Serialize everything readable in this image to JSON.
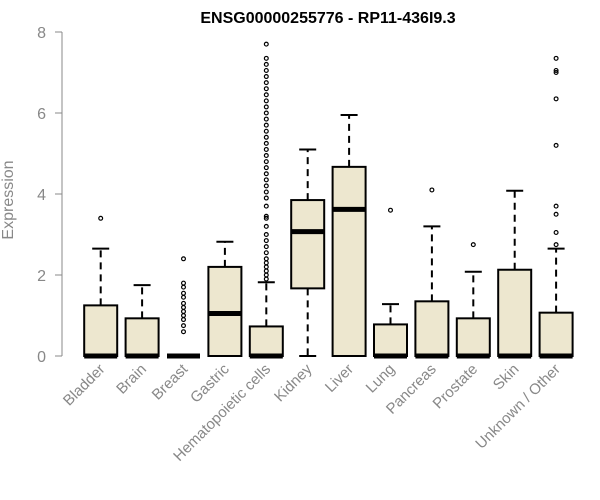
{
  "chart_data": {
    "type": "boxplot",
    "title": "ENSG00000255776 - RP11-436I9.3",
    "xlabel": "",
    "ylabel": "Expression",
    "ylim": [
      0,
      8
    ],
    "yticks": [
      0,
      2,
      4,
      6,
      8
    ],
    "colors": {
      "box_fill": "#ede7cf",
      "stroke": "#000000",
      "axis_text": "#888888",
      "axis_line": "#888888"
    },
    "categories": [
      "Bladder",
      "Brain",
      "Breast",
      "Gastric",
      "Hematopoietic cells",
      "Kidney",
      "Liver",
      "Lung",
      "Pancreas",
      "Prostate",
      "Skin",
      "Unknown / Other"
    ],
    "boxes": [
      {
        "q1": 0,
        "median": 0,
        "q3": 1.25,
        "wlow": 0,
        "whigh": 2.65,
        "outliers": [
          3.4
        ]
      },
      {
        "q1": 0,
        "median": 0,
        "q3": 0.93,
        "wlow": 0,
        "whigh": 1.75,
        "outliers": []
      },
      {
        "q1": 0,
        "median": 0,
        "q3": 0,
        "wlow": 0,
        "whigh": 0,
        "outliers": [
          0.6,
          0.75,
          0.9,
          1.0,
          1.1,
          1.2,
          1.3,
          1.45,
          1.55,
          1.7,
          1.8,
          2.4
        ]
      },
      {
        "q1": 0,
        "median": 1.05,
        "q3": 2.2,
        "wlow": 0,
        "whigh": 2.82,
        "outliers": []
      },
      {
        "q1": 0,
        "median": 0,
        "q3": 0.73,
        "wlow": 0,
        "whigh": 1.82,
        "outliers": [
          1.9,
          2.0,
          2.1,
          2.2,
          2.3,
          2.4,
          2.55,
          2.7,
          2.85,
          3.0,
          3.2,
          3.4,
          3.45,
          3.7,
          3.9,
          4.05,
          4.2,
          4.35,
          4.5,
          4.65,
          4.8,
          4.95,
          5.1,
          5.25,
          5.4,
          5.55,
          5.7,
          5.85,
          6.0,
          6.15,
          6.3,
          6.45,
          6.6,
          6.75,
          6.9,
          7.05,
          7.2,
          7.35,
          7.7
        ]
      },
      {
        "q1": 1.67,
        "median": 3.07,
        "q3": 3.85,
        "wlow": 0,
        "whigh": 5.1,
        "outliers": []
      },
      {
        "q1": 0,
        "median": 3.62,
        "q3": 4.67,
        "wlow": 0,
        "whigh": 5.95,
        "outliers": []
      },
      {
        "q1": 0,
        "median": 0,
        "q3": 0.78,
        "wlow": 0,
        "whigh": 1.28,
        "outliers": [
          3.6
        ]
      },
      {
        "q1": 0,
        "median": 0,
        "q3": 1.35,
        "wlow": 0,
        "whigh": 3.2,
        "outliers": [
          4.1
        ]
      },
      {
        "q1": 0,
        "median": 0,
        "q3": 0.93,
        "wlow": 0,
        "whigh": 2.08,
        "outliers": [
          2.75
        ]
      },
      {
        "q1": 0,
        "median": 0,
        "q3": 2.13,
        "wlow": 0,
        "whigh": 4.08,
        "outliers": []
      },
      {
        "q1": 0,
        "median": 0,
        "q3": 1.07,
        "wlow": 0,
        "whigh": 2.65,
        "outliers": [
          2.75,
          3.05,
          3.5,
          3.7,
          5.2,
          6.35,
          7.0,
          7.05,
          7.35
        ]
      }
    ]
  }
}
